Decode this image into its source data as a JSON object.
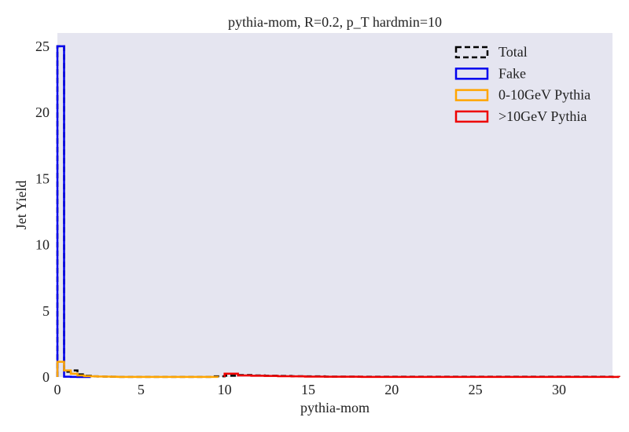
{
  "chart_data": {
    "type": "line",
    "title": "pythia-mom, R=0.2, p_T hardmin=10",
    "xlabel": "pythia-mom",
    "ylabel": "Jet Yield",
    "xlim": [
      0,
      33.2
    ],
    "ylim": [
      0,
      26
    ],
    "xticks": [
      "0",
      "5",
      "10",
      "15",
      "20",
      "25",
      "30"
    ],
    "yticks": [
      "0",
      "5",
      "10",
      "15",
      "20",
      "25"
    ],
    "grid": false,
    "legend_position": "top-right",
    "series": [
      {
        "name": "Total",
        "color": "#000000",
        "style": "dashed",
        "x": [
          0,
          0.4,
          0.8,
          1.2,
          1.6,
          2.0,
          2.4,
          2.8,
          3.2,
          3.6,
          9.2,
          10.0,
          10.8,
          11.6,
          12.4,
          13.2,
          14.0,
          14.8,
          16.0,
          18.0,
          33.2
        ],
        "y": [
          25,
          0.4,
          0.5,
          0.2,
          0.1,
          0.05,
          0.04,
          0.03,
          0.02,
          0.01,
          0.05,
          0.1,
          0.15,
          0.12,
          0.1,
          0.08,
          0.06,
          0.05,
          0.03,
          0.02,
          0.01
        ]
      },
      {
        "name": "Fake",
        "color": "#0000ee",
        "style": "solid",
        "x": [
          0,
          0.4,
          0.8,
          1.2,
          1.6
        ],
        "y": [
          25,
          0.02,
          0.01,
          0,
          0
        ]
      },
      {
        "name": "0-10GeV Pythia",
        "color": "#ffa500",
        "style": "solid",
        "x": [
          0,
          0.4,
          0.8,
          1.2,
          1.6,
          2.0,
          2.4,
          2.8,
          3.2,
          3.6,
          5.0,
          9.2
        ],
        "y": [
          1.15,
          0.5,
          0.25,
          0.12,
          0.07,
          0.05,
          0.04,
          0.03,
          0.02,
          0.01,
          0.01,
          0.01
        ]
      },
      {
        "name": ">10GeV Pythia",
        "color": "#ee0000",
        "style": "solid",
        "x": [
          10.0,
          10.8,
          11.6,
          12.4,
          13.2,
          14.0,
          14.8,
          16.0,
          18.2,
          33.2
        ],
        "y": [
          0.25,
          0.12,
          0.1,
          0.08,
          0.06,
          0.05,
          0.03,
          0.02,
          0.01,
          0.005
        ]
      }
    ]
  }
}
